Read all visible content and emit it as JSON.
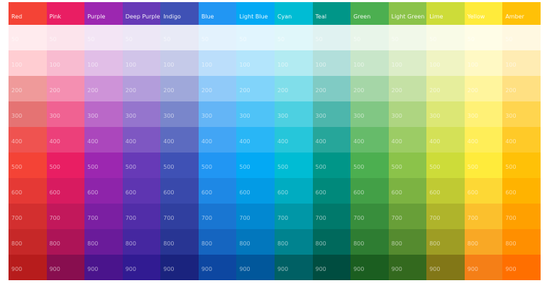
{
  "shade_labels": [
    "50",
    "100",
    "200",
    "300",
    "400",
    "500",
    "600",
    "700",
    "800",
    "900"
  ],
  "header_shade_index": 5,
  "columns": [
    {
      "name": "Red",
      "colors": [
        "#FFEBEE",
        "#FFCDD2",
        "#EF9A9A",
        "#E57373",
        "#EF5350",
        "#F44336",
        "#E53935",
        "#D32F2F",
        "#C62828",
        "#B71C1C"
      ]
    },
    {
      "name": "Pink",
      "colors": [
        "#FCE4EC",
        "#F8BBD0",
        "#F48FB1",
        "#F06292",
        "#EC407A",
        "#E91E63",
        "#D81B60",
        "#C2185B",
        "#AD1457",
        "#880E4F"
      ]
    },
    {
      "name": "Purple",
      "colors": [
        "#F3E5F5",
        "#E1BEE7",
        "#CE93D8",
        "#BA68C8",
        "#AB47BC",
        "#9C27B0",
        "#8E24AA",
        "#7B1FA2",
        "#6A1B9A",
        "#4A148C"
      ]
    },
    {
      "name": "Deep Purple",
      "colors": [
        "#EDE7F6",
        "#D1C4E9",
        "#B39DDB",
        "#9575CD",
        "#7E57C2",
        "#673AB7",
        "#5E35B1",
        "#512DA8",
        "#4527A0",
        "#311B92"
      ]
    },
    {
      "name": "Indigo",
      "colors": [
        "#E8EAF6",
        "#C5CAE9",
        "#9FA8DA",
        "#7986CB",
        "#5C6BC0",
        "#3F51B5",
        "#3949AB",
        "#303F9F",
        "#283593",
        "#1A237E"
      ]
    },
    {
      "name": "Blue",
      "colors": [
        "#E3F2FD",
        "#BBDEFB",
        "#90CAF9",
        "#64B5F6",
        "#42A5F5",
        "#2196F3",
        "#1E88E5",
        "#1976D2",
        "#1565C0",
        "#0D47A1"
      ]
    },
    {
      "name": "Light Blue",
      "colors": [
        "#E1F5FE",
        "#B3E5FC",
        "#81D4FA",
        "#4FC3F7",
        "#29B6F6",
        "#03A9F4",
        "#039BE5",
        "#0288D1",
        "#0277BD",
        "#01579B"
      ]
    },
    {
      "name": "Cyan",
      "colors": [
        "#E0F7FA",
        "#B2EBF2",
        "#80DEEA",
        "#4DD0E1",
        "#26C6DA",
        "#00BCD4",
        "#00ACC1",
        "#0097A7",
        "#00838F",
        "#006064"
      ]
    },
    {
      "name": "Teal",
      "colors": [
        "#E0F2F1",
        "#B2DFDB",
        "#80CBC4",
        "#4DB6AC",
        "#26A69A",
        "#009688",
        "#00897B",
        "#00796B",
        "#00695C",
        "#004D40"
      ]
    },
    {
      "name": "Green",
      "colors": [
        "#E8F5E9",
        "#C8E6C9",
        "#A5D6A7",
        "#81C784",
        "#66BB6A",
        "#4CAF50",
        "#43A047",
        "#388E3C",
        "#2E7D32",
        "#1B5E20"
      ]
    },
    {
      "name": "Light Green",
      "colors": [
        "#F1F8E9",
        "#DCEDC8",
        "#C5E1A5",
        "#AED581",
        "#9CCC65",
        "#8BC34A",
        "#7CB342",
        "#689F38",
        "#558B2F",
        "#33691E"
      ]
    },
    {
      "name": "Lime",
      "colors": [
        "#F9FBE7",
        "#F0F4C3",
        "#E6EE9C",
        "#DCE775",
        "#D4E157",
        "#CDDC39",
        "#C0CA33",
        "#AFB42B",
        "#9E9D24",
        "#827717"
      ]
    },
    {
      "name": "Yellow",
      "colors": [
        "#FFFDE7",
        "#FFF9C4",
        "#FFF59D",
        "#FFF176",
        "#FFEE58",
        "#FFEB3B",
        "#FDD835",
        "#FBC02D",
        "#F9A825",
        "#F57F17"
      ]
    },
    {
      "name": "Amber",
      "colors": [
        "#FFF8E1",
        "#FFECB3",
        "#FFE082",
        "#FFD54F",
        "#FFCA28",
        "#FFC107",
        "#FFB300",
        "#FFA000",
        "#FF8F00",
        "#FF6F00"
      ]
    }
  ]
}
